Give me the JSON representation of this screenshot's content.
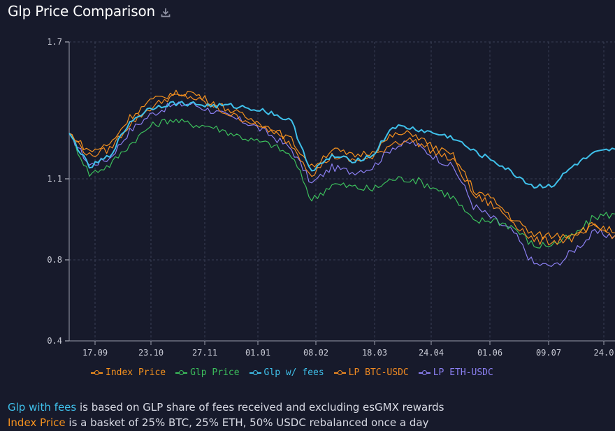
{
  "header": {
    "title": "Glp Price Comparison",
    "download_icon": "download-icon"
  },
  "colors": {
    "background": "#171a2b",
    "grid": "#3a3f55",
    "axis_text": "#c7c9d4",
    "index": "#f6921e",
    "glp": "#3cbf5c",
    "glp_fees": "#3fc0ea",
    "btc": "#f08a22",
    "eth": "#8b7ff2"
  },
  "chart_data": {
    "type": "line",
    "title": "Glp Price Comparison",
    "xlabel": "",
    "ylabel": "",
    "ylim": [
      0.4,
      1.7
    ],
    "yticks": [
      "1.7",
      "1.1",
      "0.8",
      "0.4"
    ],
    "xticks": [
      "17.09",
      "23.10",
      "27.11",
      "01.01",
      "08.02",
      "18.03",
      "24.04",
      "01.06",
      "09.07",
      "24.0"
    ],
    "grid": true,
    "legend_position": "bottom",
    "x": [
      "05.09",
      "17.09",
      "29.09",
      "11.10",
      "23.10",
      "04.11",
      "16.11",
      "27.11",
      "09.12",
      "21.12",
      "01.01",
      "13.01",
      "25.01",
      "08.02",
      "20.02",
      "04.03",
      "18.03",
      "29.03",
      "10.04",
      "24.04",
      "06.05",
      "18.05",
      "01.06",
      "13.06",
      "25.06",
      "09.07",
      "21.07",
      "24.0"
    ],
    "series": [
      {
        "name": "Index Price",
        "key": "index",
        "values": [
          1.3,
          1.22,
          1.25,
          1.37,
          1.44,
          1.47,
          1.48,
          1.44,
          1.4,
          1.36,
          1.32,
          1.27,
          1.15,
          1.23,
          1.2,
          1.22,
          1.29,
          1.3,
          1.24,
          1.2,
          1.06,
          1.02,
          0.95,
          0.89,
          0.89,
          0.9,
          0.93,
          0.9
        ]
      },
      {
        "name": "Glp Price",
        "key": "glp",
        "values": [
          1.3,
          1.12,
          1.16,
          1.25,
          1.33,
          1.36,
          1.34,
          1.33,
          1.3,
          1.27,
          1.25,
          1.2,
          1.02,
          1.08,
          1.07,
          1.06,
          1.1,
          1.1,
          1.07,
          1.03,
          0.94,
          0.95,
          0.92,
          0.85,
          0.86,
          0.89,
          0.96,
          0.97
        ]
      },
      {
        "name": "Glp w/ fees",
        "key": "glp_fees",
        "values": [
          1.3,
          1.15,
          1.2,
          1.35,
          1.41,
          1.43,
          1.43,
          1.42,
          1.42,
          1.41,
          1.39,
          1.35,
          1.13,
          1.2,
          1.18,
          1.2,
          1.33,
          1.32,
          1.3,
          1.28,
          1.22,
          1.18,
          1.12,
          1.07,
          1.08,
          1.16,
          1.21,
          1.23
        ]
      },
      {
        "name": "LP BTC-USDC",
        "key": "btc",
        "values": [
          1.3,
          1.2,
          1.23,
          1.34,
          1.41,
          1.46,
          1.46,
          1.42,
          1.38,
          1.35,
          1.31,
          1.25,
          1.12,
          1.2,
          1.18,
          1.19,
          1.26,
          1.27,
          1.22,
          1.18,
          1.04,
          1.0,
          0.94,
          0.87,
          0.87,
          0.88,
          0.92,
          0.89
        ]
      },
      {
        "name": "LP ETH-USDC",
        "key": "eth",
        "values": [
          1.3,
          1.16,
          1.19,
          1.31,
          1.38,
          1.42,
          1.43,
          1.4,
          1.37,
          1.34,
          1.29,
          1.23,
          1.08,
          1.15,
          1.13,
          1.15,
          1.24,
          1.26,
          1.2,
          1.15,
          1.0,
          0.95,
          0.9,
          0.78,
          0.77,
          0.84,
          0.9,
          0.89
        ]
      }
    ]
  },
  "legend": [
    {
      "label": "Index Price",
      "key": "index"
    },
    {
      "label": "Glp Price",
      "key": "glp"
    },
    {
      "label": "Glp w/ fees",
      "key": "glp_fees"
    },
    {
      "label": "LP BTC-USDC",
      "key": "btc"
    },
    {
      "label": "LP ETH-USDC",
      "key": "eth"
    }
  ],
  "notes": {
    "line1_highlight": "Glp with fees",
    "line1_rest": " is based on GLP share of fees received and excluding esGMX rewards",
    "line2_highlight": "Index Price",
    "line2_rest": " is a basket of 25% BTC, 25% ETH, 50% USDC rebalanced once a day"
  }
}
